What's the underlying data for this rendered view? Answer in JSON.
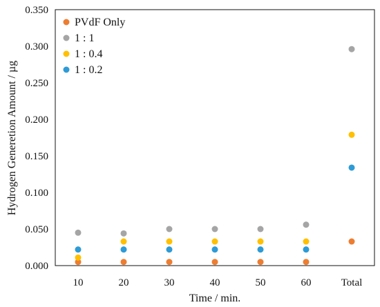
{
  "chart_data": {
    "type": "scatter",
    "title": "",
    "xlabel": "Time / min.",
    "ylabel": "Hydrogen Generetion Amount / µg",
    "categories": [
      "10",
      "20",
      "30",
      "40",
      "50",
      "60",
      "Total"
    ],
    "ylim": [
      0,
      0.35
    ],
    "yticks": [
      "0.000",
      "0.050",
      "0.100",
      "0.150",
      "0.200",
      "0.250",
      "0.300",
      "0.350"
    ],
    "grid": false,
    "legend_position": "top-left",
    "series": [
      {
        "name": "PVdF Only",
        "color": "#ED7D31",
        "values": [
          0.005,
          0.005,
          0.005,
          0.005,
          0.005,
          0.005,
          0.033
        ]
      },
      {
        "name": "1 : 1",
        "color": "#A5A5A5",
        "values": [
          0.045,
          0.044,
          0.05,
          0.05,
          0.05,
          0.056,
          0.296
        ]
      },
      {
        "name": "1 : 0.4",
        "color": "#FFC000",
        "values": [
          0.011,
          0.033,
          0.033,
          0.033,
          0.033,
          0.033,
          0.179
        ]
      },
      {
        "name": "1 : 0.2",
        "color": "#2E9BD6",
        "values": [
          0.022,
          0.022,
          0.022,
          0.022,
          0.022,
          0.022,
          0.134
        ]
      }
    ]
  }
}
